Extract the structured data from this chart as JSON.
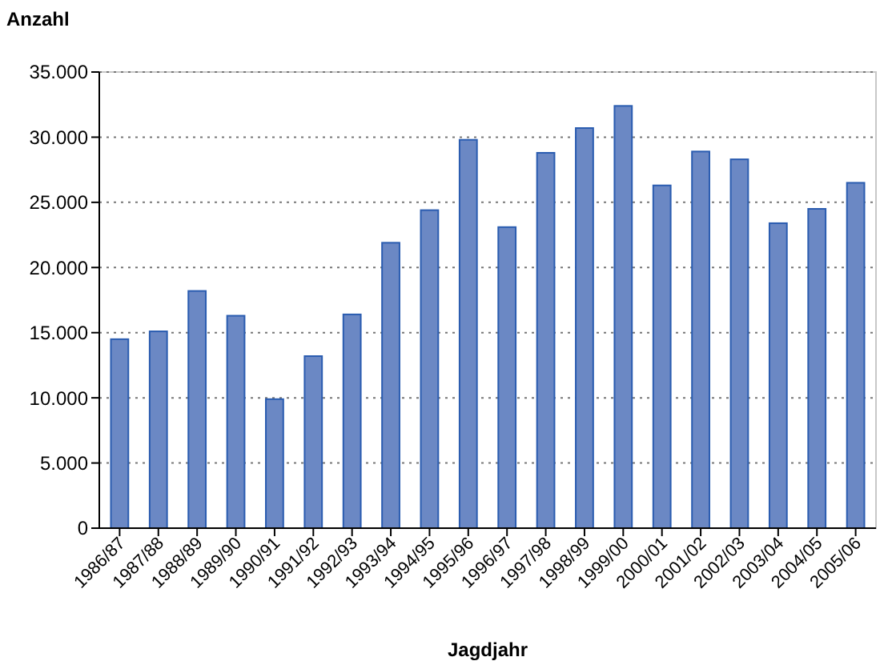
{
  "chart_data": {
    "type": "bar",
    "ylabel": "Anzahl",
    "xlabel": "Jagdjahr",
    "categories": [
      "1986/87",
      "1987/88",
      "1988/89",
      "1989/90",
      "1990/91",
      "1991/92",
      "1992/93",
      "1993/94",
      "1994/95",
      "1995/96",
      "1996/97",
      "1997/98",
      "1998/99",
      "1999/00",
      "2000/01",
      "2001/02",
      "2002/03",
      "2003/04",
      "2004/05",
      "2005/06"
    ],
    "values": [
      14500,
      15100,
      18200,
      16300,
      9900,
      13200,
      16400,
      21900,
      24400,
      29800,
      23100,
      28800,
      30700,
      32400,
      26300,
      28900,
      28300,
      23400,
      24500,
      26500
    ],
    "color": "#6b88c4",
    "ylim": [
      0,
      35000
    ],
    "yticks": [
      {
        "value": 0,
        "label": "0"
      },
      {
        "value": 5000,
        "label": "5.000"
      },
      {
        "value": 10000,
        "label": "10.000"
      },
      {
        "value": 15000,
        "label": "15.000"
      },
      {
        "value": 20000,
        "label": "20.000"
      },
      {
        "value": 25000,
        "label": "25.000"
      },
      {
        "value": 30000,
        "label": "30.000"
      },
      {
        "value": 35000,
        "label": "35.000"
      }
    ],
    "grid": "y"
  }
}
